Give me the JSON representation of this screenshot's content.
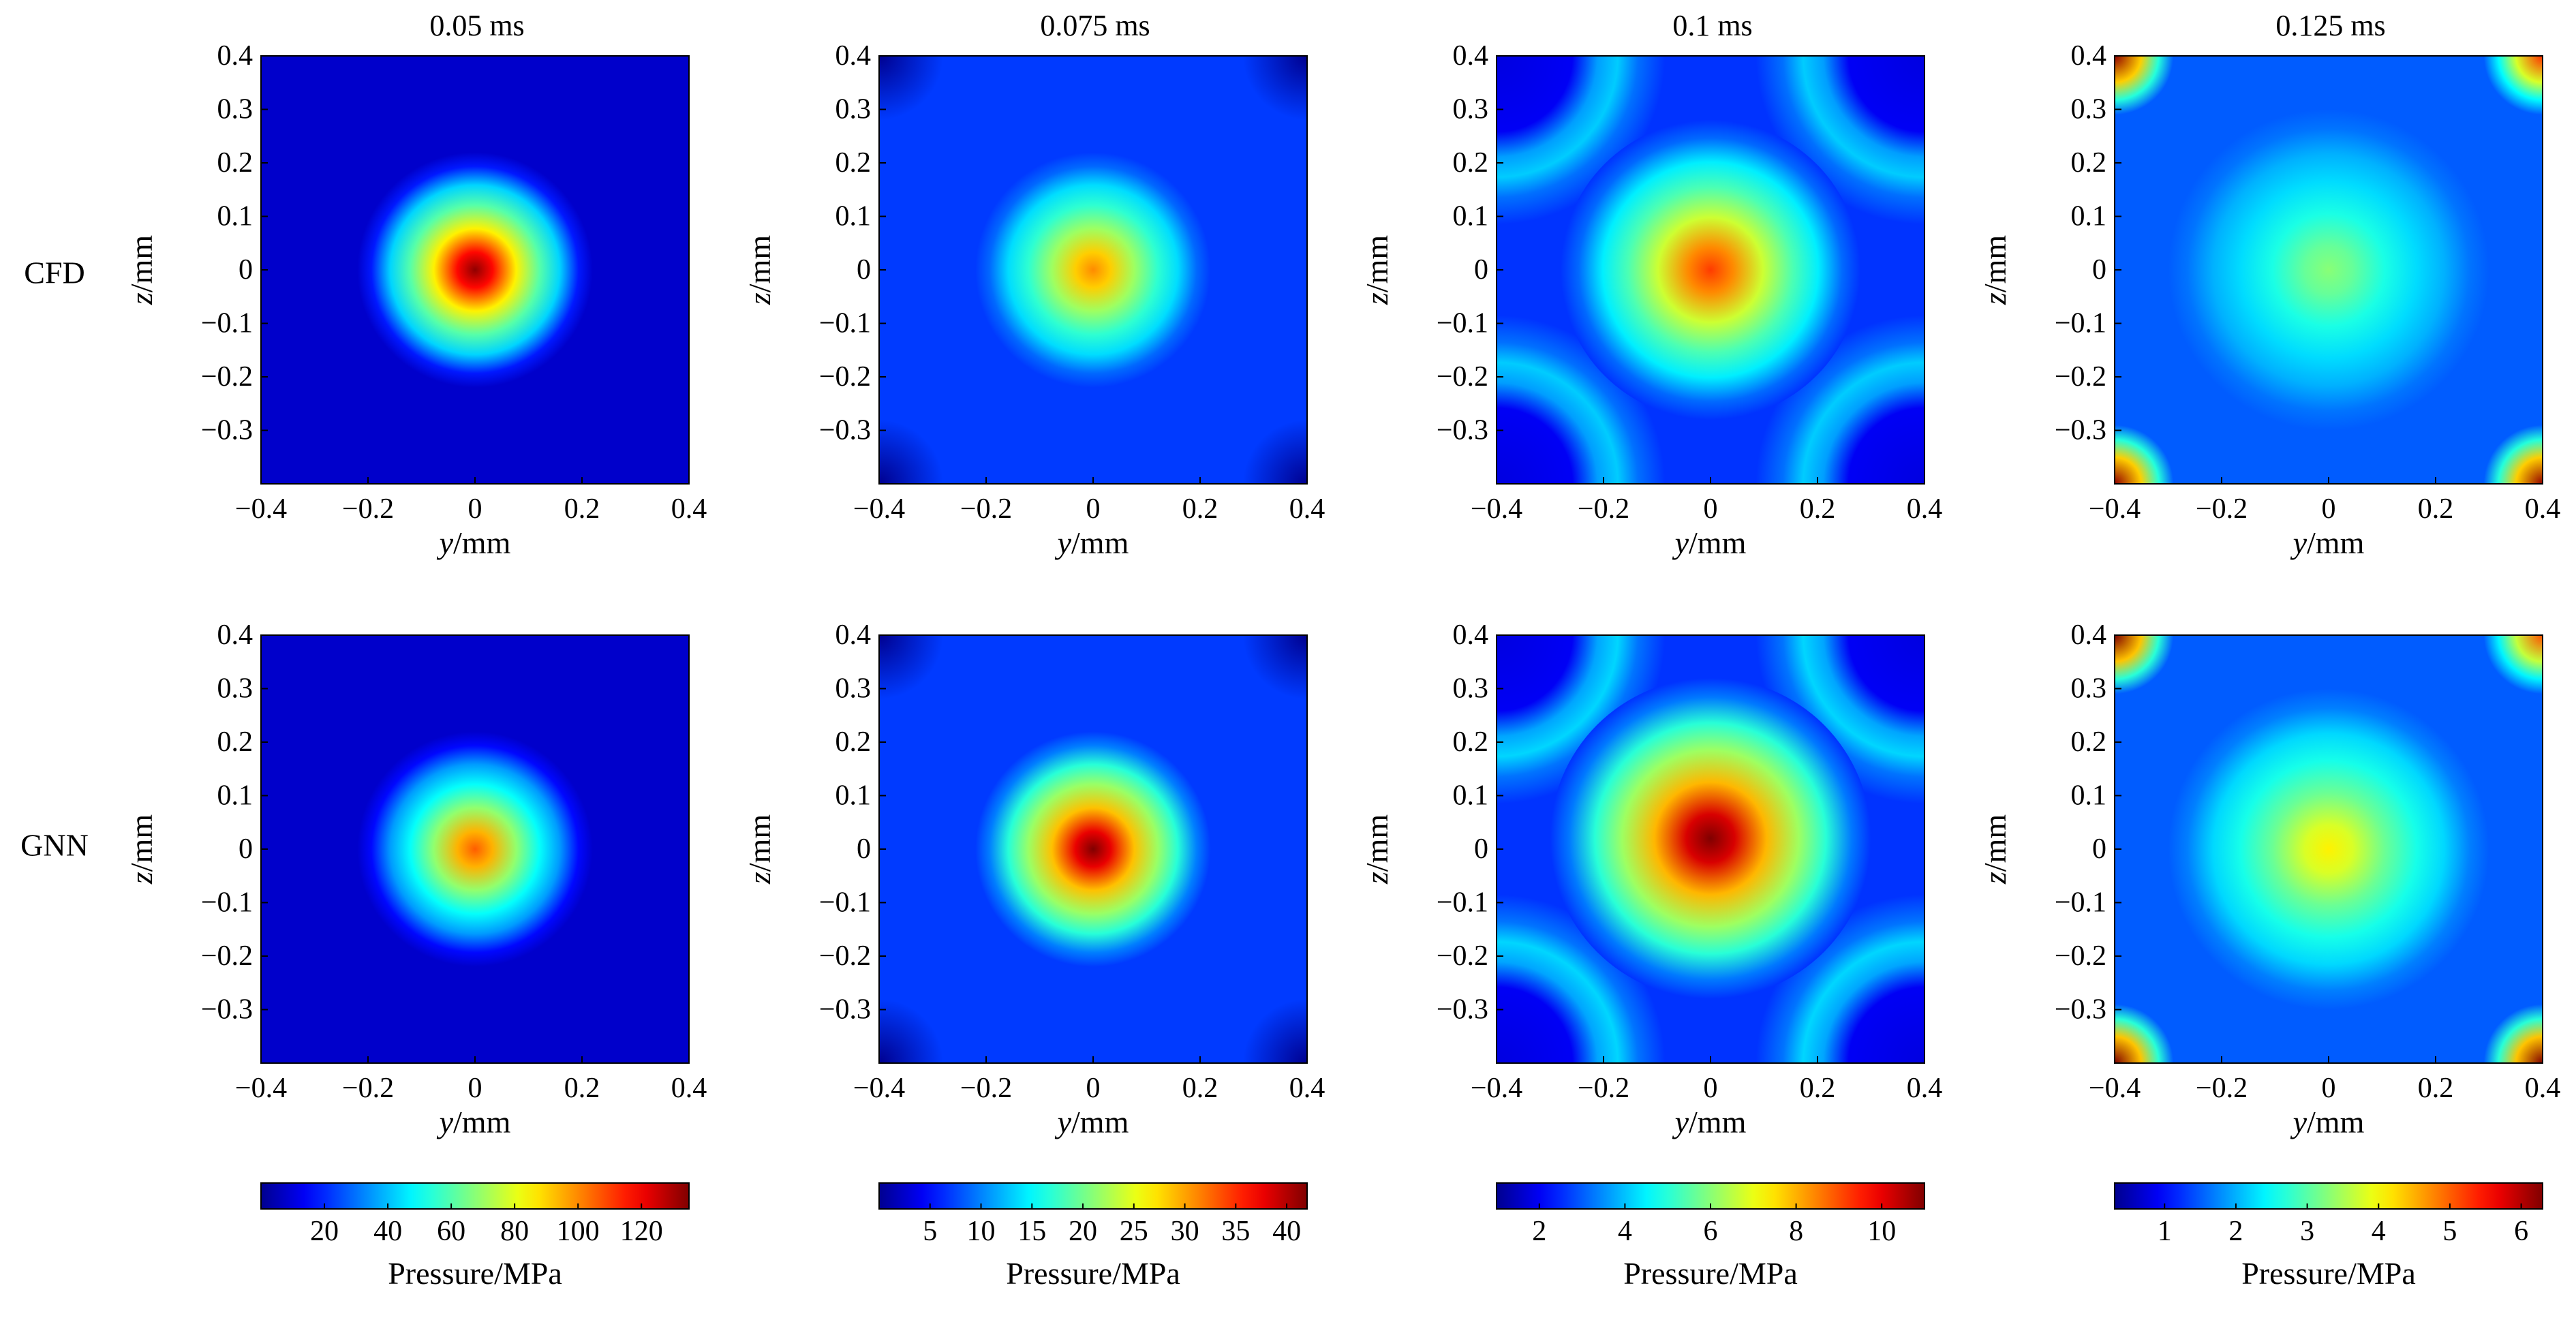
{
  "figure": {
    "columns": [
      "0.05 ms",
      "0.075 ms",
      "0.1 ms",
      "0.125 ms"
    ],
    "rows": [
      "CFD",
      "GNN"
    ],
    "xlabel_var": "y",
    "ylabel_var": "z",
    "unit": "/mm",
    "colorbar_label": "Pressure/MPa"
  },
  "colormap": [
    "#00008f",
    "#0000ff",
    "#00ffff",
    "#ffff00",
    "#ff0000",
    "#800000"
  ],
  "chart_data": [
    {
      "type": "heatmap",
      "row": "CFD",
      "time": "0.05 ms",
      "xlim": [
        -0.4,
        0.4
      ],
      "ylim": [
        -0.4,
        0.4
      ],
      "xticks": [
        "−0.4",
        "−0.2",
        "0",
        "0.2",
        "0.4"
      ],
      "yticks": [
        "0.4",
        "0.3",
        "0.2",
        "0.1",
        "0",
        "−0.1",
        "−0.2",
        "−0.3"
      ],
      "xlabel": "y/mm",
      "ylabel": "z/mm",
      "vmin": 0,
      "vmax": 135,
      "background": 8,
      "blobs": [
        {
          "cx": 0,
          "cy": 0,
          "amp": 125,
          "r": 0.1,
          "rmax": 0.22
        }
      ]
    },
    {
      "type": "heatmap",
      "row": "CFD",
      "time": "0.075 ms",
      "xlim": [
        -0.4,
        0.4
      ],
      "ylim": [
        -0.4,
        0.4
      ],
      "xticks": [
        "−0.4",
        "−0.2",
        "0",
        "0.2",
        "0.4"
      ],
      "yticks": [
        "0.4",
        "0.3",
        "0.2",
        "0.1",
        "0",
        "−0.1",
        "−0.2",
        "−0.3"
      ],
      "xlabel": "y/mm",
      "ylabel": "z/mm",
      "vmin": 0,
      "vmax": 42,
      "background": 7,
      "corner_dark": 0,
      "blobs": [
        {
          "cx": 0,
          "cy": 0,
          "amp": 24,
          "r": 0.12,
          "rmax": 0.22
        }
      ]
    },
    {
      "type": "heatmap",
      "row": "CFD",
      "time": "0.1 ms",
      "xlim": [
        -0.4,
        0.4
      ],
      "ylim": [
        -0.4,
        0.4
      ],
      "xticks": [
        "−0.4",
        "−0.2",
        "0",
        "0.2",
        "0.4"
      ],
      "yticks": [
        "0.4",
        "0.3",
        "0.2",
        "0.1",
        "0",
        "−0.1",
        "−0.2",
        "−0.3"
      ],
      "xlabel": "y/mm",
      "ylabel": "z/mm",
      "vmin": 1,
      "vmax": 11,
      "background": 2.6,
      "blobs": [
        {
          "cx": 0,
          "cy": 0,
          "amp": 6.6,
          "r": 0.16,
          "rmax": 0.28
        }
      ],
      "arcs": [
        {
          "cx": -0.4,
          "cy": 0.4,
          "amp": 1.5
        },
        {
          "cx": 0.4,
          "cy": 0.4,
          "amp": 1.5
        },
        {
          "cx": -0.4,
          "cy": -0.4,
          "amp": 1.5
        },
        {
          "cx": 0.4,
          "cy": -0.4,
          "amp": 1.5
        }
      ],
      "arc_radius": 0.3
    },
    {
      "type": "heatmap",
      "row": "CFD",
      "time": "0.125 ms",
      "xlim": [
        -0.4,
        0.4
      ],
      "ylim": [
        -0.4,
        0.4
      ],
      "xticks": [
        "−0.4",
        "−0.2",
        "0",
        "0.2",
        "0.4"
      ],
      "yticks": [
        "0.4",
        "0.3",
        "0.2",
        "0.1",
        "0",
        "−0.1",
        "−0.2",
        "−0.3"
      ],
      "xlabel": "y/mm",
      "ylabel": "z/mm",
      "vmin": 0.3,
      "vmax": 6.3,
      "background": 1.5,
      "blobs": [
        {
          "cx": 0,
          "cy": 0,
          "amp": 1.8,
          "r": 0.25,
          "rmax": 0.3
        }
      ],
      "corners": [
        {
          "cx": -0.4,
          "cy": 0.4,
          "amp": 4.7
        },
        {
          "cx": 0.4,
          "cy": 0.4,
          "amp": 3.8
        },
        {
          "cx": -0.4,
          "cy": -0.4,
          "amp": 4.7
        },
        {
          "cx": 0.4,
          "cy": -0.4,
          "amp": 4.7
        }
      ]
    },
    {
      "type": "heatmap",
      "row": "GNN",
      "time": "0.05 ms",
      "xlim": [
        -0.4,
        0.4
      ],
      "ylim": [
        -0.4,
        0.4
      ],
      "xticks": [
        "−0.4",
        "−0.2",
        "0",
        "0.2",
        "0.4"
      ],
      "yticks": [
        "0.4",
        "0.3",
        "0.2",
        "0.1",
        "0",
        "−0.1",
        "−0.2",
        "−0.3"
      ],
      "xlabel": "y/mm",
      "ylabel": "z/mm",
      "vmin": 0,
      "vmax": 135,
      "background": 8,
      "blobs": [
        {
          "cx": 0,
          "cy": 0,
          "amp": 98,
          "r": 0.1,
          "rmax": 0.22
        }
      ]
    },
    {
      "type": "heatmap",
      "row": "GNN",
      "time": "0.075 ms",
      "xlim": [
        -0.4,
        0.4
      ],
      "ylim": [
        -0.4,
        0.4
      ],
      "xticks": [
        "−0.4",
        "−0.2",
        "0",
        "0.2",
        "0.4"
      ],
      "yticks": [
        "0.4",
        "0.3",
        "0.2",
        "0.1",
        "0",
        "−0.1",
        "−0.2",
        "−0.3"
      ],
      "xlabel": "y/mm",
      "ylabel": "z/mm",
      "vmin": 0,
      "vmax": 42,
      "background": 7,
      "corner_dark": 0,
      "blobs": [
        {
          "cx": 0,
          "cy": 0,
          "amp": 35,
          "r": 0.12,
          "rmax": 0.22
        }
      ]
    },
    {
      "type": "heatmap",
      "row": "GNN",
      "time": "0.1 ms",
      "xlim": [
        -0.4,
        0.4
      ],
      "ylim": [
        -0.4,
        0.4
      ],
      "xticks": [
        "−0.4",
        "−0.2",
        "0",
        "0.2",
        "0.4"
      ],
      "yticks": [
        "0.4",
        "0.3",
        "0.2",
        "0.1",
        "0",
        "−0.1",
        "−0.2",
        "−0.3"
      ],
      "xlabel": "y/mm",
      "ylabel": "z/mm",
      "vmin": 1,
      "vmax": 11,
      "background": 2.6,
      "blobs": [
        {
          "cx": 0,
          "cy": 0.02,
          "amp": 8.6,
          "r": 0.17,
          "rmax": 0.3
        }
      ],
      "arcs": [
        {
          "cx": -0.4,
          "cy": 0.4,
          "amp": 1.6
        },
        {
          "cx": 0.4,
          "cy": 0.4,
          "amp": 1.6
        },
        {
          "cx": -0.4,
          "cy": -0.4,
          "amp": 1.6
        },
        {
          "cx": 0.4,
          "cy": -0.4,
          "amp": 1.6
        }
      ],
      "arc_radius": 0.3
    },
    {
      "type": "heatmap",
      "row": "GNN",
      "time": "0.125 ms",
      "xlim": [
        -0.4,
        0.4
      ],
      "ylim": [
        -0.4,
        0.4
      ],
      "xticks": [
        "−0.4",
        "−0.2",
        "0",
        "0.2",
        "0.4"
      ],
      "yticks": [
        "0.4",
        "0.3",
        "0.2",
        "0.1",
        "0",
        "−0.1",
        "−0.2",
        "−0.3"
      ],
      "xlabel": "y/mm",
      "ylabel": "z/mm",
      "vmin": 0.3,
      "vmax": 6.3,
      "background": 1.5,
      "blobs": [
        {
          "cx": 0,
          "cy": 0,
          "amp": 2.6,
          "r": 0.24,
          "rmax": 0.3
        }
      ],
      "corners": [
        {
          "cx": -0.4,
          "cy": 0.4,
          "amp": 4.8
        },
        {
          "cx": 0.4,
          "cy": 0.4,
          "amp": 3.6
        },
        {
          "cx": -0.4,
          "cy": -0.4,
          "amp": 4.8
        },
        {
          "cx": 0.4,
          "cy": -0.4,
          "amp": 4.8
        }
      ]
    },
    {
      "type": "colorbar",
      "time": "0.05 ms",
      "label": "Pressure/MPa",
      "vmin": 0,
      "vmax": 135,
      "ticks": [
        20,
        40,
        60,
        80,
        100,
        120
      ],
      "tick_labels": [
        "20",
        "40",
        "60",
        "80",
        "100",
        "120"
      ]
    },
    {
      "type": "colorbar",
      "time": "0.075 ms",
      "label": "Pressure/MPa",
      "vmin": 0,
      "vmax": 42,
      "ticks": [
        5,
        10,
        15,
        20,
        25,
        30,
        35,
        40
      ],
      "tick_labels": [
        "5",
        "10",
        "15",
        "20",
        "25",
        "30",
        "35",
        "40"
      ]
    },
    {
      "type": "colorbar",
      "time": "0.1 ms",
      "label": "Pressure/MPa",
      "vmin": 1,
      "vmax": 11,
      "ticks": [
        2,
        4,
        6,
        8,
        10
      ],
      "tick_labels": [
        "2",
        "4",
        "6",
        "8",
        "10"
      ]
    },
    {
      "type": "colorbar",
      "time": "0.125 ms",
      "label": "Pressure/MPa",
      "vmin": 0.3,
      "vmax": 6.3,
      "ticks": [
        1,
        2,
        3,
        4,
        5,
        6
      ],
      "tick_labels": [
        "1",
        "2",
        "3",
        "4",
        "5",
        "6"
      ]
    }
  ]
}
